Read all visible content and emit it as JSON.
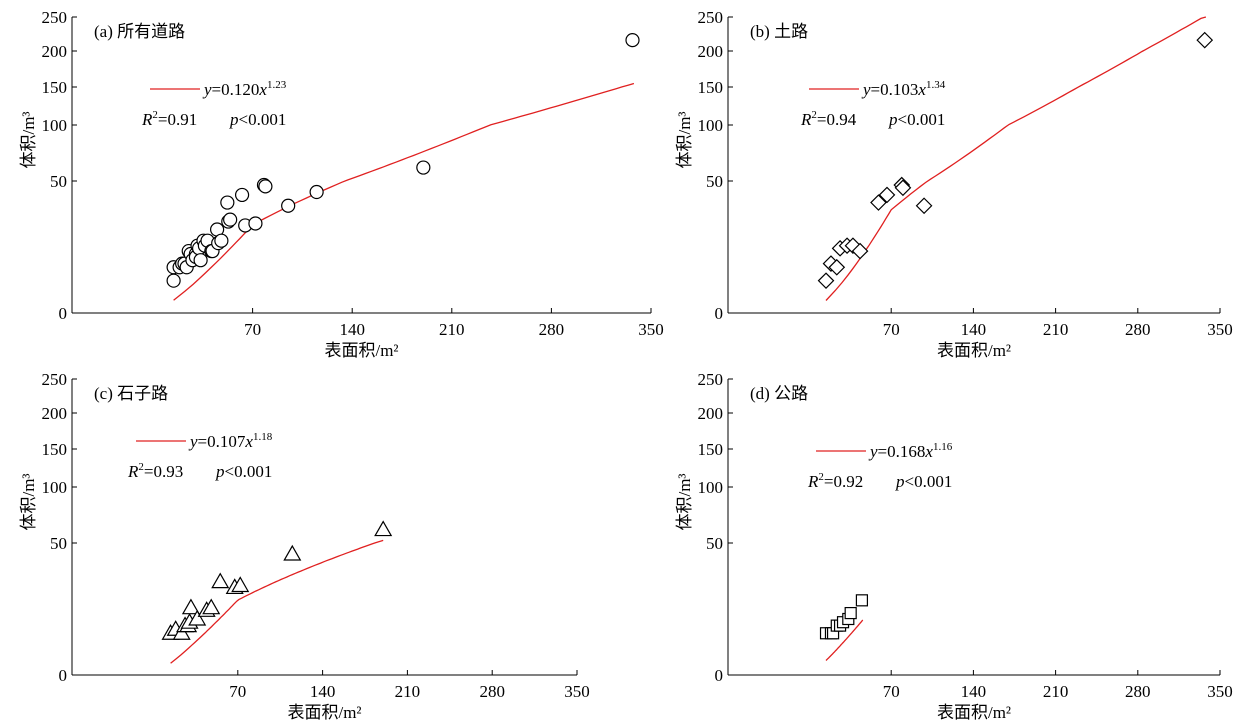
{
  "chart_data": [
    {
      "type": "scatter",
      "panel_label": "(a) 所有道路",
      "marker": "circle",
      "xlabel": "表面积/m²",
      "ylabel": "体积/m³",
      "xticks": [
        "70",
        "140",
        "210",
        "280",
        "350"
      ],
      "yticks": [
        "0",
        "50",
        "100",
        "150",
        "200",
        "250"
      ],
      "fit": {
        "a": 0.12,
        "b": 1.23,
        "equation": "y=0.120x1.23",
        "r2_text": "R²=0.91",
        "p_text": "p<0.001",
        "x_range": [
          3,
          338
        ]
      },
      "points": [
        [
          3,
          3
        ],
        [
          3,
          6
        ],
        [
          5,
          6
        ],
        [
          6,
          7
        ],
        [
          7,
          7
        ],
        [
          8,
          6
        ],
        [
          9,
          11
        ],
        [
          10,
          10
        ],
        [
          11,
          8
        ],
        [
          13,
          10
        ],
        [
          13,
          9
        ],
        [
          14,
          13
        ],
        [
          15,
          12
        ],
        [
          16,
          8
        ],
        [
          18,
          15
        ],
        [
          19,
          13
        ],
        [
          21,
          15
        ],
        [
          24,
          11
        ],
        [
          25,
          11
        ],
        [
          29,
          20
        ],
        [
          30,
          14
        ],
        [
          33,
          15
        ],
        [
          39,
          35
        ],
        [
          40,
          24
        ],
        [
          42,
          25
        ],
        [
          56,
          40
        ],
        [
          60,
          22
        ],
        [
          72,
          23
        ],
        [
          78,
          47
        ],
        [
          79,
          46
        ],
        [
          95,
          33
        ],
        [
          115,
          42
        ],
        [
          190,
          62
        ],
        [
          337,
          216
        ]
      ]
    },
    {
      "type": "scatter",
      "panel_label": "(b) 土路",
      "marker": "diamond",
      "xlabel": "表面积/m²",
      "ylabel": "体积/m³",
      "xticks": [
        "70",
        "140",
        "210",
        "280",
        "350"
      ],
      "yticks": [
        "0",
        "50",
        "100",
        "150",
        "200",
        "250"
      ],
      "fit": {
        "a": 0.103,
        "b": 1.34,
        "equation": "y=0.103x1.34",
        "r2_text": "R²=0.94",
        "p_text": "p<0.001",
        "x_range": [
          3,
          338
        ]
      },
      "points": [
        [
          3,
          3
        ],
        [
          5,
          7
        ],
        [
          8,
          6
        ],
        [
          10,
          12
        ],
        [
          15,
          13
        ],
        [
          20,
          13
        ],
        [
          27,
          11
        ],
        [
          50,
          35
        ],
        [
          63,
          40
        ],
        [
          79,
          47
        ],
        [
          80,
          45
        ],
        [
          98,
          33
        ],
        [
          337,
          216
        ]
      ]
    },
    {
      "type": "scatter",
      "panel_label": "(c) 石子路",
      "marker": "triangle",
      "xlabel": "表面积/m²",
      "ylabel": "体积/m³",
      "xticks": [
        "70",
        "140",
        "210",
        "280",
        "350"
      ],
      "yticks": [
        "0",
        "50",
        "100",
        "150",
        "200",
        "250"
      ],
      "fit": {
        "a": 0.107,
        "b": 1.18,
        "equation": "y=0.107x1.18",
        "r2_text": "R²=0.93",
        "p_text": "p<0.001",
        "x_range": [
          3,
          190
        ]
      },
      "points": [
        [
          3,
          5
        ],
        [
          5,
          6
        ],
        [
          8,
          5
        ],
        [
          10,
          7
        ],
        [
          12,
          7
        ],
        [
          13,
          8
        ],
        [
          14,
          13
        ],
        [
          19,
          9
        ],
        [
          28,
          12
        ],
        [
          33,
          13
        ],
        [
          44,
          25
        ],
        [
          65,
          22
        ],
        [
          72,
          23
        ],
        [
          115,
          42
        ],
        [
          190,
          62
        ]
      ]
    },
    {
      "type": "scatter",
      "panel_label": "(d) 公路",
      "marker": "square",
      "xlabel": "表面积/m²",
      "ylabel": "体积/m³",
      "xticks": [
        "70",
        "140",
        "210",
        "280",
        "350"
      ],
      "yticks": [
        "0",
        "50",
        "100",
        "150",
        "200",
        "250"
      ],
      "fit": {
        "a": 0.168,
        "b": 1.16,
        "equation": "y=0.168x1.16",
        "r2_text": "R²=0.92",
        "p_text": "p<0.001",
        "x_range": [
          3,
          30
        ]
      },
      "points": [
        [
          3,
          5
        ],
        [
          5,
          5
        ],
        [
          6,
          5
        ],
        [
          8,
          7
        ],
        [
          10,
          7
        ],
        [
          12,
          8
        ],
        [
          16,
          9
        ],
        [
          18,
          11
        ],
        [
          29,
          16
        ]
      ]
    }
  ]
}
